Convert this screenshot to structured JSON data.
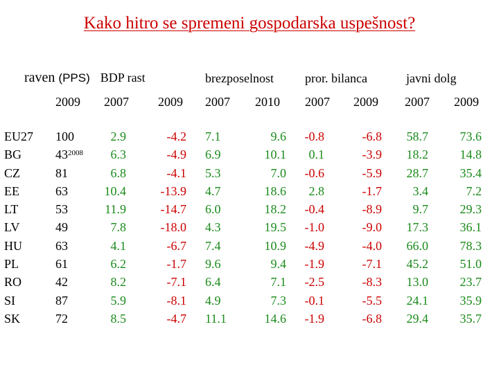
{
  "title": "Kako hitro se spremeni gospodarska uspešnost?",
  "headers": {
    "raven": "raven",
    "pps": "(PPS)",
    "bdp": "BDP rast",
    "brezposelnost": "brezposelnost",
    "bilanca": "pror. bilanca",
    "dolg": "javni dolg"
  },
  "years": [
    "2009",
    "2007",
    "2009",
    "2007",
    "2010",
    "2007",
    "2009",
    "2007",
    "2009"
  ],
  "countries": [
    "EU27",
    "BG",
    "CZ",
    "EE",
    "LT",
    "LV",
    "HU",
    "PL",
    "RO",
    "SI",
    "SK"
  ],
  "raven": [
    "100",
    "43",
    "81",
    "63",
    "53",
    "49",
    "63",
    "61",
    "42",
    "87",
    "72"
  ],
  "raven_note": "2008",
  "bdp2007": [
    "2.9",
    "6.3",
    "6.8",
    "10.4",
    "11.9",
    "7.8",
    "4.1",
    "6.2",
    "8.2",
    "5.9",
    "8.5"
  ],
  "bdp2009": [
    "-4.2",
    "-4.9",
    "-4.1",
    "-13.9",
    "-14.7",
    "-18.0",
    "-6.7",
    "-1.7",
    "-7.1",
    "-8.1",
    "-4.7"
  ],
  "brez2007": [
    "7.1",
    "6.9",
    "5.3",
    "4.7",
    "6.0",
    "4.3",
    "7.4",
    "9.6",
    "6.4",
    "4.9",
    "11.1"
  ],
  "brez2010": [
    "9.6",
    "10.1",
    "7.0",
    "18.6",
    "18.2",
    "19.5",
    "10.9",
    "9.4",
    "7.1",
    "7.3",
    "14.6"
  ],
  "bil2007": [
    "-0.8",
    "0.1",
    "-0.6",
    "2.8",
    "-0.4",
    "-1.0",
    "-4.9",
    "-1.9",
    "-2.5",
    "-0.1",
    "-1.9"
  ],
  "bil2009": [
    "-6.8",
    "-3.9",
    "-5.9",
    "-1.7",
    "-8.9",
    "-9.0",
    "-4.0",
    "-7.1",
    "-8.3",
    "-5.5",
    "-6.8"
  ],
  "dolg2007": [
    "58.7",
    "18.2",
    "28.7",
    "3.4",
    "9.7",
    "17.3",
    "66.0",
    "45.2",
    "13.0",
    "24.1",
    "29.4"
  ],
  "dolg2009": [
    "73.6",
    "14.8",
    "35.4",
    "7.2",
    "29.3",
    "36.1",
    "78.3",
    "51.0",
    "23.7",
    "35.9",
    "35.7"
  ],
  "colors": {
    "title": "#cc0000",
    "positive": "#1a8a1a",
    "negative": "#cc0000"
  }
}
